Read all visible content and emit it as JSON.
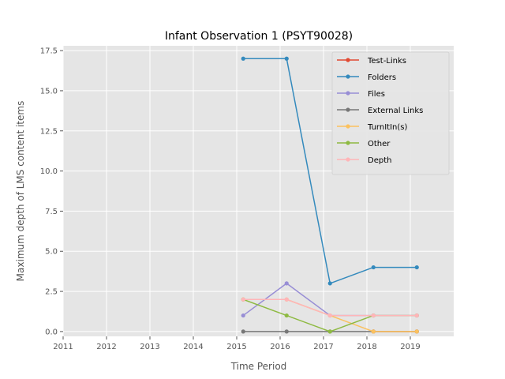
{
  "chart_data": {
    "type": "line",
    "title": "Infant Observation 1 (PSYT90028)",
    "xlabel": "Time Period",
    "ylabel": "Maximum depth of LMS content items",
    "xlim": [
      2011,
      2020
    ],
    "ylim": [
      -0.3,
      17.8
    ],
    "x_ticks": [
      "2011",
      "2012",
      "2013",
      "2014",
      "2015",
      "2016",
      "2017",
      "2018",
      "2019"
    ],
    "y_ticks": [
      "0.0",
      "2.5",
      "5.0",
      "7.5",
      "10.0",
      "12.5",
      "15.0",
      "17.5"
    ],
    "grid": true,
    "legend_position": "top-right",
    "x": [
      2015.15,
      2016.15,
      2017.15,
      2018.15,
      2019.15
    ],
    "series": [
      {
        "name": "Test-Links",
        "color": "#E24A33",
        "points": [
          [
            2018.15,
            0
          ],
          [
            2019.15,
            0
          ]
        ]
      },
      {
        "name": "Folders",
        "color": "#348ABD",
        "points": [
          [
            2015.15,
            17
          ],
          [
            2016.15,
            17
          ],
          [
            2017.15,
            3
          ],
          [
            2018.15,
            4
          ],
          [
            2019.15,
            4
          ]
        ]
      },
      {
        "name": "Files",
        "color": "#988ED5",
        "points": [
          [
            2015.15,
            1
          ],
          [
            2016.15,
            3
          ],
          [
            2017.15,
            1
          ],
          [
            2018.15,
            1
          ],
          [
            2019.15,
            1
          ]
        ]
      },
      {
        "name": "External Links",
        "color": "#777777",
        "points": [
          [
            2015.15,
            0
          ],
          [
            2016.15,
            0
          ],
          [
            2017.15,
            0
          ],
          [
            2018.15,
            0
          ],
          [
            2019.15,
            0
          ]
        ]
      },
      {
        "name": "TurnItIn(s)",
        "color": "#FBC15E",
        "points": [
          [
            2015.15,
            2
          ],
          [
            2016.15,
            2
          ],
          [
            2017.15,
            1
          ],
          [
            2018.15,
            0
          ],
          [
            2019.15,
            0
          ]
        ]
      },
      {
        "name": "Other",
        "color": "#8EBA42",
        "points": [
          [
            2015.15,
            2
          ],
          [
            2016.15,
            1
          ],
          [
            2017.15,
            0
          ],
          [
            2018.15,
            1
          ],
          [
            2019.15,
            1
          ]
        ]
      },
      {
        "name": "Depth",
        "color": "#FFB5B8",
        "points": [
          [
            2015.15,
            2
          ],
          [
            2016.15,
            2
          ],
          [
            2017.15,
            1
          ],
          [
            2018.15,
            1
          ],
          [
            2019.15,
            1
          ]
        ]
      }
    ]
  }
}
